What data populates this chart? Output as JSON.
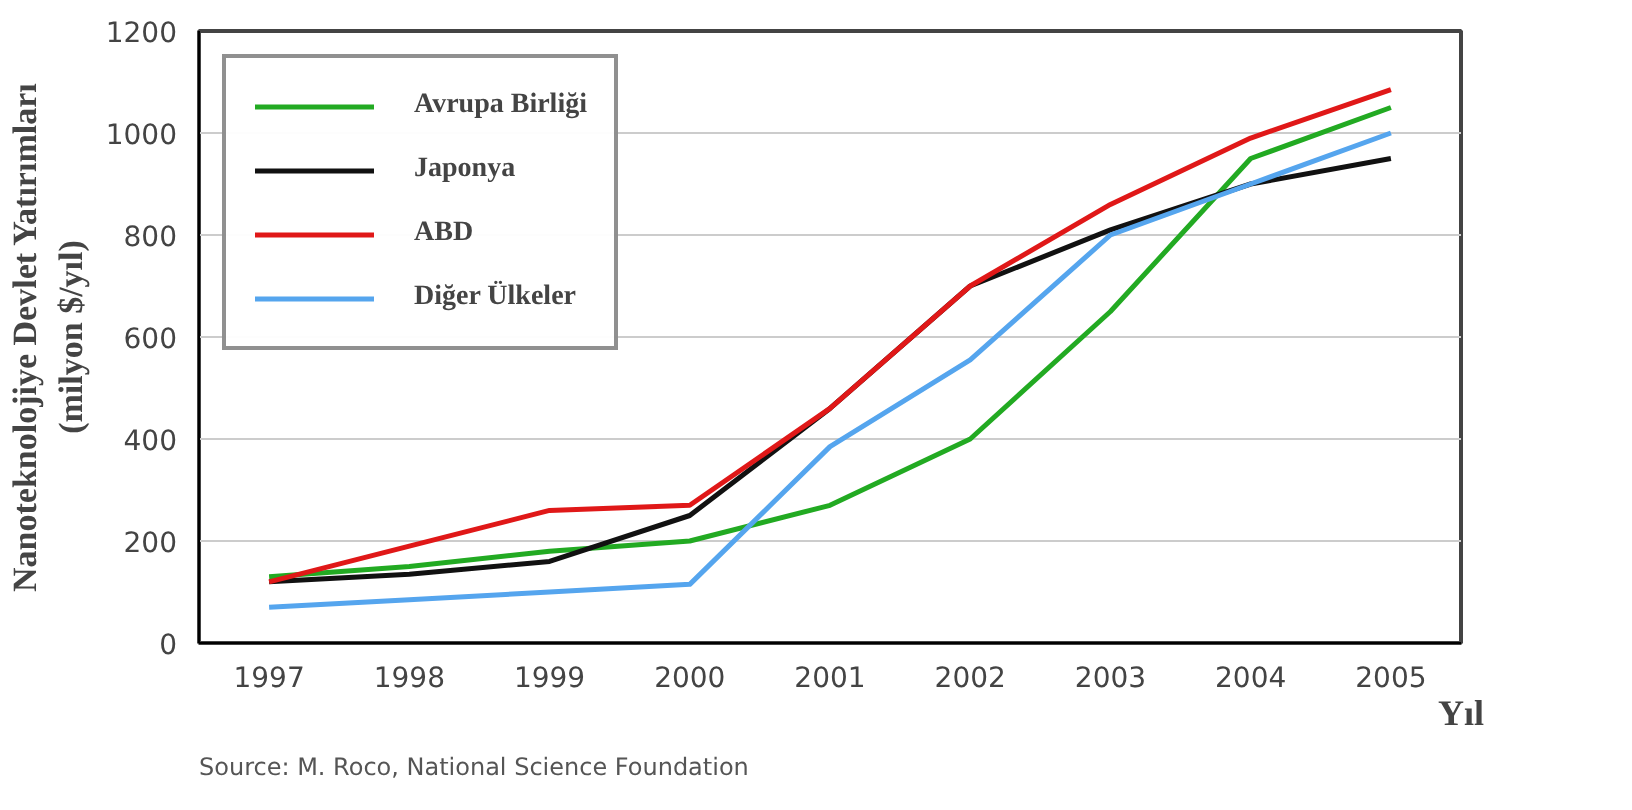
{
  "chart_data": {
    "type": "line",
    "xlabel": "Yıl",
    "ylabel": "Nanoteknolojiye Devlet Yatırımları\n(milyon $/yıl)",
    "x": [
      1997,
      1998,
      1999,
      2000,
      2001,
      2002,
      2003,
      2004,
      2005
    ],
    "xlim": [
      1996.5,
      2005.5
    ],
    "xticks": [
      1997,
      1998,
      1999,
      2000,
      2001,
      2002,
      2003,
      2004,
      2005
    ],
    "ylim": [
      0,
      1200
    ],
    "yticks": [
      0,
      200,
      400,
      600,
      800,
      1000,
      1200
    ],
    "grid": "y",
    "legend": "top left",
    "marker": "none",
    "line_style": "solid",
    "series": [
      {
        "name": "Avrupa Birliği",
        "color": "#22aa22",
        "values": [
          130,
          150,
          180,
          200,
          270,
          400,
          650,
          950,
          1050
        ]
      },
      {
        "name": "Japonya",
        "color": "#111111",
        "values": [
          120,
          135,
          160,
          250,
          460,
          700,
          810,
          900,
          950
        ]
      },
      {
        "name": "ABD",
        "color": "#e01818",
        "values": [
          120,
          190,
          260,
          270,
          460,
          700,
          860,
          990,
          1085
        ]
      },
      {
        "name": "Diğer Ülkeler",
        "color": "#55a5ee",
        "values": [
          70,
          85,
          100,
          115,
          385,
          555,
          800,
          900,
          1000
        ]
      }
    ],
    "annotations": [
      "Source: M. Roco, National Science Foundation"
    ]
  }
}
